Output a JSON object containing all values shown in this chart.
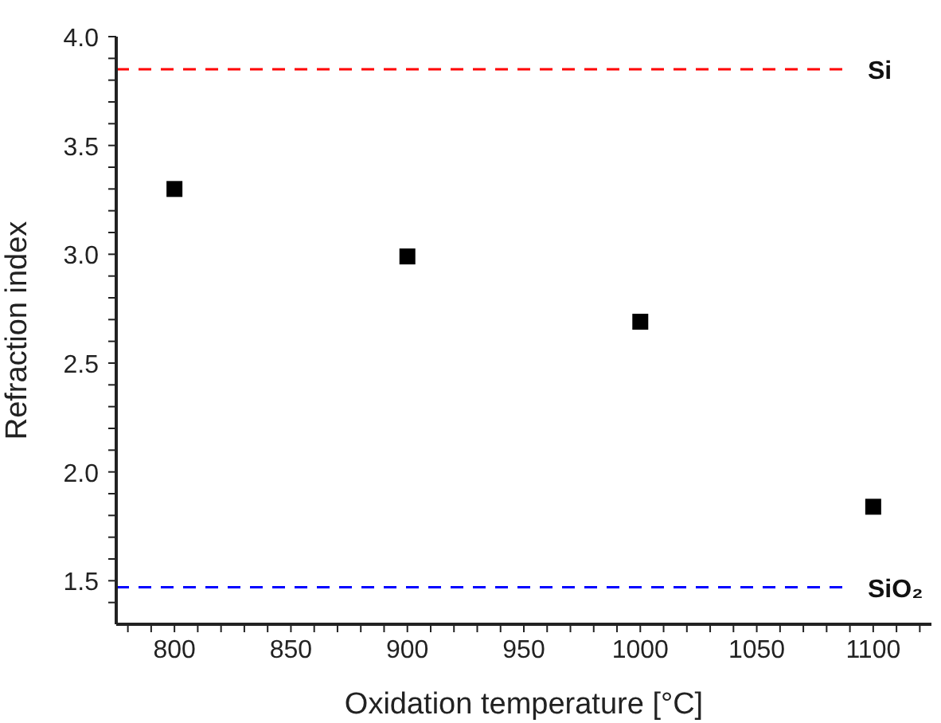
{
  "chart_data": {
    "type": "scatter",
    "xlabel": "Oxidation temperature [°C]",
    "ylabel": "Refraction index",
    "x": [
      800,
      900,
      1000,
      1100
    ],
    "series": [
      {
        "color": "#000000",
        "values": [
          3.3,
          2.99,
          2.69,
          1.84
        ]
      }
    ],
    "marker": "square",
    "xlim": [
      775,
      1125
    ],
    "xticks": [
      {
        "value": 780,
        "label": null
      },
      {
        "value": 790,
        "label": null
      },
      800,
      {
        "value": 810,
        "label": null
      },
      {
        "value": 820,
        "label": null
      },
      {
        "value": 830,
        "label": null
      },
      {
        "value": 840,
        "label": null
      },
      850,
      {
        "value": 860,
        "label": null
      },
      {
        "value": 870,
        "label": null
      },
      {
        "value": 880,
        "label": null
      },
      {
        "value": 890,
        "label": null
      },
      900,
      {
        "value": 910,
        "label": null
      },
      {
        "value": 920,
        "label": null
      },
      {
        "value": 930,
        "label": null
      },
      {
        "value": 940,
        "label": null
      },
      950,
      {
        "value": 960,
        "label": null
      },
      {
        "value": 970,
        "label": null
      },
      {
        "value": 980,
        "label": null
      },
      {
        "value": 990,
        "label": null
      },
      1000,
      {
        "value": 1010,
        "label": null
      },
      {
        "value": 1020,
        "label": null
      },
      {
        "value": 1030,
        "label": null
      },
      {
        "value": 1040,
        "label": null
      },
      1050,
      {
        "value": 1060,
        "label": null
      },
      {
        "value": 1070,
        "label": null
      },
      {
        "value": 1080,
        "label": null
      },
      {
        "value": 1090,
        "label": null
      },
      1100,
      {
        "value": 1110,
        "label": null
      },
      {
        "value": 1120,
        "label": null
      }
    ],
    "ylim": [
      1.3,
      4.0
    ],
    "yticks": [
      {
        "value": 1.4,
        "label": null
      },
      {
        "value": 1.5,
        "label": "1.5"
      },
      {
        "value": 1.6,
        "label": null
      },
      {
        "value": 1.7,
        "label": null
      },
      {
        "value": 1.8,
        "label": null
      },
      {
        "value": 1.9,
        "label": null
      },
      {
        "value": 2.0,
        "label": "2.0"
      },
      {
        "value": 2.1,
        "label": null
      },
      {
        "value": 2.2,
        "label": null
      },
      {
        "value": 2.3,
        "label": null
      },
      {
        "value": 2.4,
        "label": null
      },
      {
        "value": 2.5,
        "label": "2.5"
      },
      {
        "value": 2.6,
        "label": null
      },
      {
        "value": 2.7,
        "label": null
      },
      {
        "value": 2.8,
        "label": null
      },
      {
        "value": 2.9,
        "label": null
      },
      {
        "value": 3.0,
        "label": "3.0"
      },
      {
        "value": 3.1,
        "label": null
      },
      {
        "value": 3.2,
        "label": null
      },
      {
        "value": 3.3,
        "label": null
      },
      {
        "value": 3.4,
        "label": null
      },
      {
        "value": 3.5,
        "label": "3.5"
      },
      {
        "value": 3.6,
        "label": null
      },
      {
        "value": 3.7,
        "label": null
      },
      {
        "value": 3.8,
        "label": null
      },
      {
        "value": 3.9,
        "label": null
      },
      {
        "value": 4.0,
        "label": "4.0"
      }
    ],
    "ref_lines": [
      {
        "axis": "y",
        "value": 3.85,
        "label": "Si",
        "color": "#ff0000",
        "line_style": "dashed"
      },
      {
        "axis": "y",
        "value": 1.47,
        "label": "SiO₂",
        "color": "#0000ff",
        "line_style": "dashed"
      }
    ]
  }
}
